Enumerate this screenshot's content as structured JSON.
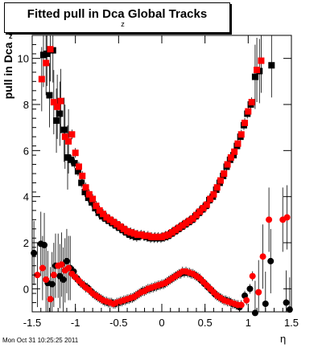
{
  "chart_data": {
    "type": "scatter",
    "title": "Fitted pull in Dca",
    "title_suffix": "Global Tracks",
    "title_subscript": "z",
    "ylabel": "pull in Dca",
    "ylabel_subscript": "z",
    "xlabel": "η",
    "xlim": [
      -1.5,
      1.5
    ],
    "ylim": [
      -1.0,
      11.0
    ],
    "x_ticks": [
      "-1.5",
      "-1",
      "-0.5",
      "0",
      "0.5",
      "1",
      "1.5"
    ],
    "y_ticks": [
      "0",
      "2",
      "4",
      "6",
      "8",
      "10"
    ],
    "series": [
      {
        "marker": "square",
        "color": "#000000",
        "points": [
          [
            -1.37,
            10.15
          ],
          [
            -1.33,
            10.2
          ],
          [
            -1.3,
            8.4
          ],
          [
            -1.26,
            10.35
          ],
          [
            -1.22,
            7.3
          ],
          [
            -1.18,
            7.6
          ],
          [
            -1.13,
            6.9
          ],
          [
            -1.09,
            5.7
          ],
          [
            -1.05,
            5.6
          ],
          [
            -1.01,
            5.45
          ],
          [
            -0.97,
            5.1
          ],
          [
            -0.93,
            4.6
          ],
          [
            -0.89,
            4.2
          ],
          [
            -0.85,
            3.95
          ],
          [
            -0.81,
            3.75
          ],
          [
            -0.77,
            3.5
          ],
          [
            -0.73,
            3.3
          ],
          [
            -0.69,
            3.15
          ],
          [
            -0.65,
            3.05
          ],
          [
            -0.61,
            2.95
          ],
          [
            -0.57,
            2.85
          ],
          [
            -0.53,
            2.75
          ],
          [
            -0.49,
            2.65
          ],
          [
            -0.45,
            2.55
          ],
          [
            -0.41,
            2.45
          ],
          [
            -0.37,
            2.35
          ],
          [
            -0.33,
            2.3
          ],
          [
            -0.29,
            2.25
          ],
          [
            -0.25,
            2.3
          ],
          [
            -0.21,
            2.3
          ],
          [
            -0.17,
            2.25
          ],
          [
            -0.13,
            2.2
          ],
          [
            -0.09,
            2.2
          ],
          [
            -0.05,
            2.2
          ],
          [
            -0.01,
            2.2
          ],
          [
            0.03,
            2.25
          ],
          [
            0.07,
            2.3
          ],
          [
            0.11,
            2.4
          ],
          [
            0.15,
            2.5
          ],
          [
            0.19,
            2.6
          ],
          [
            0.23,
            2.7
          ],
          [
            0.27,
            2.8
          ],
          [
            0.31,
            2.9
          ],
          [
            0.35,
            3.0
          ],
          [
            0.39,
            3.15
          ],
          [
            0.43,
            3.3
          ],
          [
            0.47,
            3.45
          ],
          [
            0.51,
            3.6
          ],
          [
            0.55,
            3.85
          ],
          [
            0.59,
            4.0
          ],
          [
            0.63,
            4.3
          ],
          [
            0.67,
            4.6
          ],
          [
            0.71,
            4.9
          ],
          [
            0.75,
            5.3
          ],
          [
            0.79,
            5.6
          ],
          [
            0.83,
            5.8
          ],
          [
            0.87,
            6.2
          ],
          [
            0.91,
            6.6
          ],
          [
            0.95,
            7.1
          ],
          [
            0.99,
            7.6
          ],
          [
            1.03,
            8.0
          ],
          [
            1.08,
            9.2
          ],
          [
            1.13,
            9.45
          ],
          [
            1.27,
            9.7
          ]
        ]
      },
      {
        "marker": "square",
        "color": "#ff0000",
        "points": [
          [
            -1.39,
            9.1
          ],
          [
            -1.34,
            9.8
          ],
          [
            -1.29,
            10.4
          ],
          [
            -1.25,
            8.1
          ],
          [
            -1.21,
            7.9
          ],
          [
            -1.17,
            8.15
          ],
          [
            -1.12,
            6.6
          ],
          [
            -1.08,
            6.4
          ],
          [
            -1.04,
            6.7
          ],
          [
            -1.0,
            5.9
          ],
          [
            -0.96,
            5.3
          ],
          [
            -0.92,
            4.9
          ],
          [
            -0.88,
            4.4
          ],
          [
            -0.84,
            4.1
          ],
          [
            -0.8,
            3.9
          ],
          [
            -0.76,
            3.6
          ],
          [
            -0.72,
            3.4
          ],
          [
            -0.68,
            3.25
          ],
          [
            -0.64,
            3.1
          ],
          [
            -0.6,
            3.0
          ],
          [
            -0.56,
            2.9
          ],
          [
            -0.52,
            2.8
          ],
          [
            -0.48,
            2.7
          ],
          [
            -0.44,
            2.6
          ],
          [
            -0.4,
            2.5
          ],
          [
            -0.36,
            2.45
          ],
          [
            -0.32,
            2.4
          ],
          [
            -0.28,
            2.35
          ],
          [
            -0.24,
            2.35
          ],
          [
            -0.2,
            2.3
          ],
          [
            -0.16,
            2.3
          ],
          [
            -0.12,
            2.25
          ],
          [
            -0.08,
            2.25
          ],
          [
            -0.04,
            2.25
          ],
          [
            0.0,
            2.25
          ],
          [
            0.04,
            2.3
          ],
          [
            0.08,
            2.35
          ],
          [
            0.12,
            2.45
          ],
          [
            0.16,
            2.55
          ],
          [
            0.2,
            2.65
          ],
          [
            0.24,
            2.75
          ],
          [
            0.28,
            2.85
          ],
          [
            0.32,
            2.95
          ],
          [
            0.36,
            3.05
          ],
          [
            0.4,
            3.2
          ],
          [
            0.44,
            3.35
          ],
          [
            0.48,
            3.5
          ],
          [
            0.52,
            3.65
          ],
          [
            0.56,
            3.9
          ],
          [
            0.6,
            4.1
          ],
          [
            0.64,
            4.4
          ],
          [
            0.68,
            4.7
          ],
          [
            0.72,
            5.0
          ],
          [
            0.76,
            5.4
          ],
          [
            0.8,
            5.7
          ],
          [
            0.84,
            5.95
          ],
          [
            0.88,
            6.3
          ],
          [
            0.92,
            6.7
          ],
          [
            0.96,
            7.2
          ],
          [
            1.0,
            7.7
          ],
          [
            1.04,
            8.1
          ],
          [
            1.1,
            9.5
          ],
          [
            1.15,
            9.9
          ]
        ]
      },
      {
        "marker": "circle",
        "color": "#000000",
        "points": [
          [
            -1.48,
            1.55
          ],
          [
            -1.4,
            1.95
          ],
          [
            -1.36,
            1.9
          ],
          [
            -1.32,
            0.25
          ],
          [
            -1.27,
            0.2
          ],
          [
            -1.23,
            1.0
          ],
          [
            -1.18,
            0.55
          ],
          [
            -1.14,
            0.4
          ],
          [
            -1.1,
            1.2
          ],
          [
            -1.06,
            0.9
          ],
          [
            -1.02,
            0.75
          ],
          [
            -0.98,
            0.45
          ],
          [
            -0.94,
            0.25
          ],
          [
            -0.9,
            0.15
          ],
          [
            -0.86,
            0.05
          ],
          [
            -0.82,
            -0.1
          ],
          [
            -0.78,
            -0.25
          ],
          [
            -0.74,
            -0.35
          ],
          [
            -0.7,
            -0.45
          ],
          [
            -0.66,
            -0.55
          ],
          [
            -0.62,
            -0.6
          ],
          [
            -0.58,
            -0.6
          ],
          [
            -0.54,
            -0.65
          ],
          [
            -0.5,
            -0.6
          ],
          [
            -0.46,
            -0.55
          ],
          [
            -0.42,
            -0.5
          ],
          [
            -0.38,
            -0.45
          ],
          [
            -0.34,
            -0.4
          ],
          [
            -0.3,
            -0.3
          ],
          [
            -0.26,
            -0.2
          ],
          [
            -0.22,
            -0.1
          ],
          [
            -0.18,
            -0.05
          ],
          [
            -0.14,
            0.0
          ],
          [
            -0.1,
            0.05
          ],
          [
            -0.06,
            0.1
          ],
          [
            -0.02,
            0.15
          ],
          [
            0.02,
            0.2
          ],
          [
            0.06,
            0.3
          ],
          [
            0.1,
            0.4
          ],
          [
            0.14,
            0.5
          ],
          [
            0.18,
            0.6
          ],
          [
            0.22,
            0.65
          ],
          [
            0.26,
            0.7
          ],
          [
            0.3,
            0.7
          ],
          [
            0.34,
            0.65
          ],
          [
            0.38,
            0.6
          ],
          [
            0.42,
            0.5
          ],
          [
            0.46,
            0.35
          ],
          [
            0.5,
            0.2
          ],
          [
            0.54,
            0.05
          ],
          [
            0.58,
            -0.1
          ],
          [
            0.62,
            -0.25
          ],
          [
            0.66,
            -0.35
          ],
          [
            0.7,
            -0.45
          ],
          [
            0.74,
            -0.5
          ],
          [
            0.78,
            -0.55
          ],
          [
            0.82,
            -0.65
          ],
          [
            0.86,
            -0.7
          ],
          [
            0.9,
            -0.8
          ],
          [
            0.96,
            -0.3
          ],
          [
            1.02,
            0.0
          ],
          [
            1.08,
            -1.05
          ],
          [
            1.2,
            -0.65
          ],
          [
            1.26,
            1.2
          ],
          [
            1.44,
            -0.6
          ],
          [
            1.48,
            -0.9
          ]
        ]
      },
      {
        "marker": "circle",
        "color": "#ff0000",
        "points": [
          [
            -1.44,
            0.6
          ],
          [
            -1.38,
            0.9
          ],
          [
            -1.34,
            0.4
          ],
          [
            -1.29,
            -0.45
          ],
          [
            -1.25,
            0.6
          ],
          [
            -1.2,
            1.0
          ],
          [
            -1.16,
            1.05
          ],
          [
            -1.12,
            0.8
          ],
          [
            -1.08,
            0.9
          ],
          [
            -1.04,
            0.65
          ],
          [
            -1.0,
            0.5
          ],
          [
            -0.96,
            0.35
          ],
          [
            -0.92,
            0.2
          ],
          [
            -0.88,
            0.05
          ],
          [
            -0.84,
            -0.05
          ],
          [
            -0.8,
            -0.2
          ],
          [
            -0.76,
            -0.3
          ],
          [
            -0.72,
            -0.4
          ],
          [
            -0.68,
            -0.5
          ],
          [
            -0.64,
            -0.55
          ],
          [
            -0.6,
            -0.6
          ],
          [
            -0.56,
            -0.65
          ],
          [
            -0.52,
            -0.6
          ],
          [
            -0.48,
            -0.55
          ],
          [
            -0.44,
            -0.5
          ],
          [
            -0.4,
            -0.45
          ],
          [
            -0.36,
            -0.4
          ],
          [
            -0.32,
            -0.35
          ],
          [
            -0.28,
            -0.25
          ],
          [
            -0.24,
            -0.15
          ],
          [
            -0.2,
            -0.1
          ],
          [
            -0.16,
            0.0
          ],
          [
            -0.12,
            0.05
          ],
          [
            -0.08,
            0.1
          ],
          [
            -0.04,
            0.15
          ],
          [
            0.0,
            0.2
          ],
          [
            0.04,
            0.25
          ],
          [
            0.08,
            0.35
          ],
          [
            0.12,
            0.45
          ],
          [
            0.16,
            0.55
          ],
          [
            0.2,
            0.65
          ],
          [
            0.24,
            0.75
          ],
          [
            0.28,
            0.75
          ],
          [
            0.32,
            0.7
          ],
          [
            0.36,
            0.65
          ],
          [
            0.4,
            0.55
          ],
          [
            0.44,
            0.45
          ],
          [
            0.48,
            0.3
          ],
          [
            0.52,
            0.15
          ],
          [
            0.56,
            0.0
          ],
          [
            0.6,
            -0.15
          ],
          [
            0.64,
            -0.3
          ],
          [
            0.68,
            -0.4
          ],
          [
            0.72,
            -0.5
          ],
          [
            0.76,
            -0.55
          ],
          [
            0.8,
            -0.6
          ],
          [
            0.84,
            -0.65
          ],
          [
            0.88,
            -0.7
          ],
          [
            0.92,
            -0.7
          ],
          [
            0.98,
            -0.5
          ],
          [
            1.05,
            0.55
          ],
          [
            1.12,
            -0.15
          ],
          [
            1.17,
            1.4
          ],
          [
            1.24,
            3.0
          ],
          [
            1.4,
            3.0
          ],
          [
            1.45,
            3.1
          ]
        ]
      }
    ],
    "grid": false,
    "legend": "none"
  },
  "footer": {
    "timestamp": "Mon Oct 31 10:25:25 2011"
  }
}
